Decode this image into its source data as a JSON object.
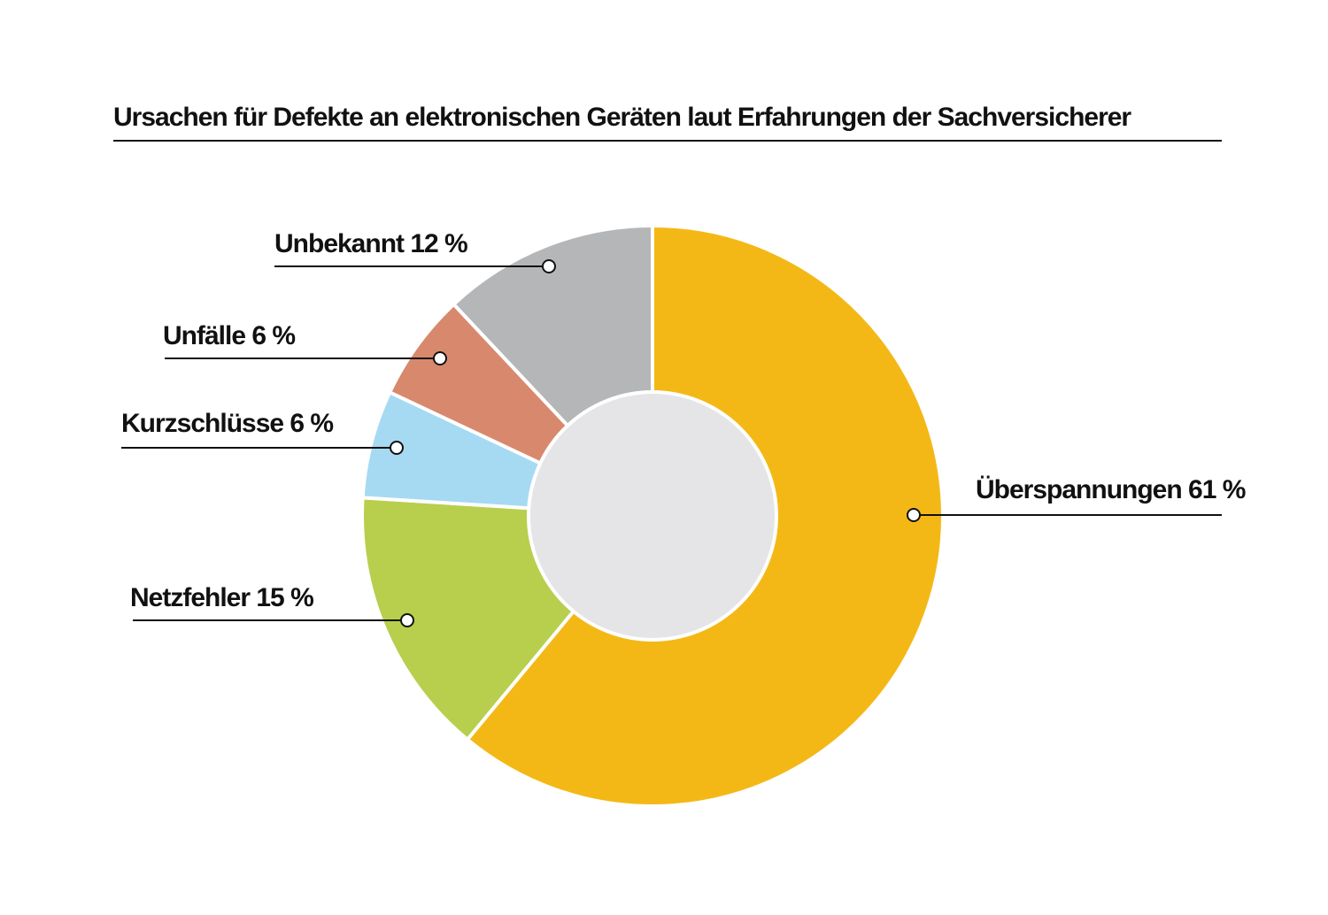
{
  "chart_data": {
    "type": "pie",
    "title": "Ursachen für Defekte an elektronischen Geräten laut Erfahrungen der Sachversicherer",
    "donut": true,
    "unit": "%",
    "series": [
      {
        "label": "Überspannungen 61 %",
        "value": 61,
        "color": "#F4B816"
      },
      {
        "label": "Netzfehler 15 %",
        "value": 15,
        "color": "#B7CF4D"
      },
      {
        "label": "Kurzschlüsse 6 %",
        "value": 6,
        "color": "#A5DAF2"
      },
      {
        "label": "Unfälle 6 %",
        "value": 6,
        "color": "#D8896D"
      },
      {
        "label": "Unbekannt 12 %",
        "value": 12,
        "color": "#B5B6B7"
      }
    ],
    "center_color": "#E5E5E7"
  }
}
